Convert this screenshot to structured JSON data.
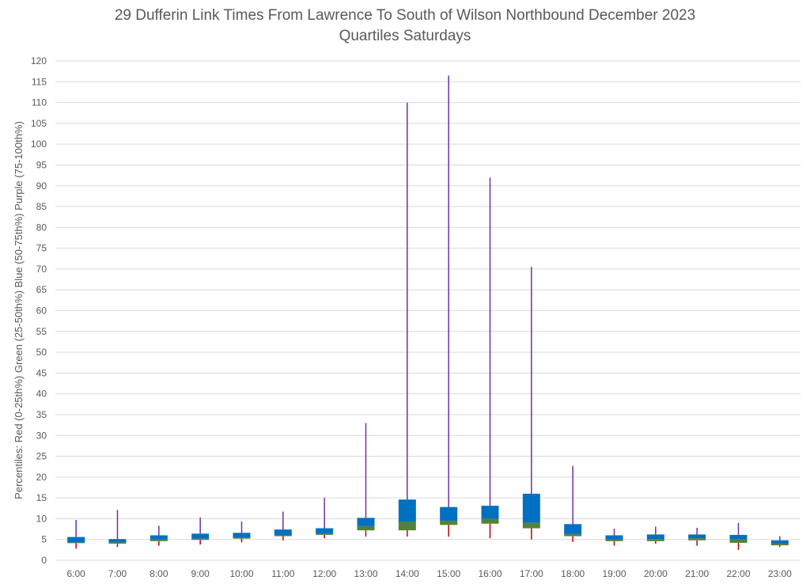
{
  "chart_data": {
    "type": "box",
    "title": "29 Dufferin Link Times From Lawrence To South of Wilson Northbound December 2023",
    "subtitle": "Quartiles Saturdays",
    "ylabel": "Percentiles:  Red (0-25th%)  Green (25-50th%)  Blue (50-75th%)  Purple (75-100th%)",
    "xlabel": "",
    "ylim": [
      0,
      120
    ],
    "yticks": [
      0,
      5,
      10,
      15,
      20,
      25,
      30,
      35,
      40,
      45,
      50,
      55,
      60,
      65,
      70,
      75,
      80,
      85,
      90,
      95,
      100,
      105,
      110,
      115,
      120
    ],
    "grid": true,
    "categories": [
      "6:00",
      "7:00",
      "8:00",
      "9:00",
      "10:00",
      "11:00",
      "12:00",
      "13:00",
      "14:00",
      "15:00",
      "16:00",
      "17:00",
      "18:00",
      "19:00",
      "20:00",
      "21:00",
      "22:00",
      "23:00"
    ],
    "series": [
      {
        "name": "Red (0-25th%)",
        "color": "#c00000",
        "values": [
          2.8,
          3.2,
          3.5,
          3.8,
          4.3,
          4.8,
          5.3,
          5.7,
          5.7,
          5.7,
          5.3,
          5.0,
          4.4,
          3.5,
          4.0,
          3.5,
          2.5,
          3.2
        ]
      },
      {
        "name": "Green (25-50th%)",
        "color": "#548235",
        "values": [
          4.2,
          4.0,
          4.6,
          4.9,
          5.2,
          5.8,
          6.1,
          7.2,
          7.2,
          8.5,
          8.8,
          7.7,
          5.8,
          4.6,
          4.6,
          4.8,
          4.2,
          3.6
        ]
      },
      {
        "name": "Blue (50-75th%)",
        "color": "#0070c0",
        "values": [
          4.3,
          4.3,
          5.0,
          5.2,
          5.5,
          6.0,
          6.4,
          8.2,
          9.2,
          9.5,
          10.0,
          9.0,
          6.3,
          5.0,
          5.1,
          5.3,
          5.0,
          4.0
        ]
      },
      {
        "name": "Purple (75-100th%)",
        "color": "#7030a0",
        "values": [
          5.6,
          5.1,
          6.0,
          6.4,
          6.6,
          7.4,
          7.7,
          10.2,
          14.6,
          12.8,
          13.1,
          16.0,
          8.7,
          6.0,
          6.2,
          6.2,
          6.1,
          4.8
        ]
      },
      {
        "name": "Max",
        "color": "#7030a0",
        "values": [
          9.7,
          12.1,
          8.3,
          10.3,
          9.3,
          11.7,
          15.0,
          33.0,
          110.0,
          116.5,
          92.0,
          70.5,
          22.7,
          7.6,
          8.1,
          7.8,
          9.0,
          5.8
        ]
      }
    ]
  }
}
